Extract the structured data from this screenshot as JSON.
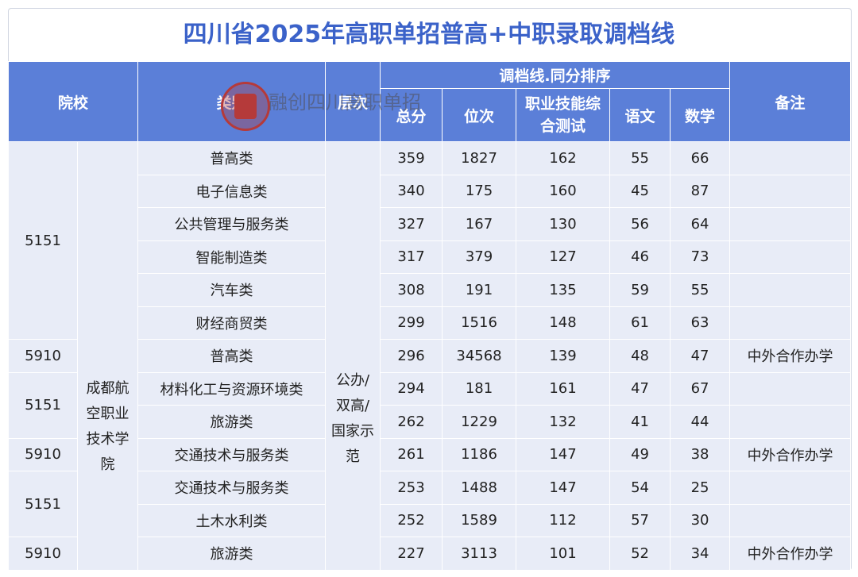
{
  "title": "四川省2025年高职单招普高+中职录取调档线",
  "header": {
    "college": "院校",
    "category": "类别",
    "level": "层次",
    "group": "调档线.同分排序",
    "total": "总分",
    "rank": "位次",
    "skill": "职业技能综合测试",
    "chinese": "语文",
    "math": "数学",
    "note": "备注"
  },
  "college_name": "成都航空职业技术学院",
  "level_value": "公办/双高/国家示范",
  "codes": [
    {
      "code": "5151"
    },
    {
      "code": "5910"
    },
    {
      "code": "5151"
    },
    {
      "code": "5910"
    },
    {
      "code": "5151"
    },
    {
      "code": "5910"
    }
  ],
  "rows": [
    {
      "category": "普高类",
      "total": "359",
      "rank": "1827",
      "skill": "162",
      "chinese": "55",
      "math": "66",
      "note": ""
    },
    {
      "category": "电子信息类",
      "total": "340",
      "rank": "175",
      "skill": "160",
      "chinese": "45",
      "math": "87",
      "note": ""
    },
    {
      "category": "公共管理与服务类",
      "total": "327",
      "rank": "167",
      "skill": "130",
      "chinese": "56",
      "math": "64",
      "note": ""
    },
    {
      "category": "智能制造类",
      "total": "317",
      "rank": "379",
      "skill": "127",
      "chinese": "46",
      "math": "73",
      "note": ""
    },
    {
      "category": "汽车类",
      "total": "308",
      "rank": "191",
      "skill": "135",
      "chinese": "59",
      "math": "55",
      "note": ""
    },
    {
      "category": "财经商贸类",
      "total": "299",
      "rank": "1516",
      "skill": "148",
      "chinese": "61",
      "math": "63",
      "note": ""
    },
    {
      "category": "普高类",
      "total": "296",
      "rank": "34568",
      "skill": "139",
      "chinese": "48",
      "math": "47",
      "note": "中外合作办学"
    },
    {
      "category": "材料化工与资源环境类",
      "total": "294",
      "rank": "181",
      "skill": "161",
      "chinese": "47",
      "math": "67",
      "note": ""
    },
    {
      "category": "旅游类",
      "total": "262",
      "rank": "1229",
      "skill": "132",
      "chinese": "41",
      "math": "44",
      "note": ""
    },
    {
      "category": "交通技术与服务类",
      "total": "261",
      "rank": "1186",
      "skill": "147",
      "chinese": "49",
      "math": "38",
      "note": "中外合作办学"
    },
    {
      "category": "交通技术与服务类",
      "total": "253",
      "rank": "1488",
      "skill": "147",
      "chinese": "54",
      "math": "25",
      "note": ""
    },
    {
      "category": "土木水利类",
      "total": "252",
      "rank": "1589",
      "skill": "112",
      "chinese": "57",
      "math": "30",
      "note": ""
    },
    {
      "category": "旅游类",
      "total": "227",
      "rank": "3113",
      "skill": "101",
      "chinese": "52",
      "math": "34",
      "note": "中外合作办学"
    }
  ],
  "watermark": "融创四川高职单招",
  "colors": {
    "header_bg": "#5b7fd8",
    "title": "#3b62c9",
    "cell_bg": "#e8ecf7",
    "seal": "#b53a3a"
  }
}
